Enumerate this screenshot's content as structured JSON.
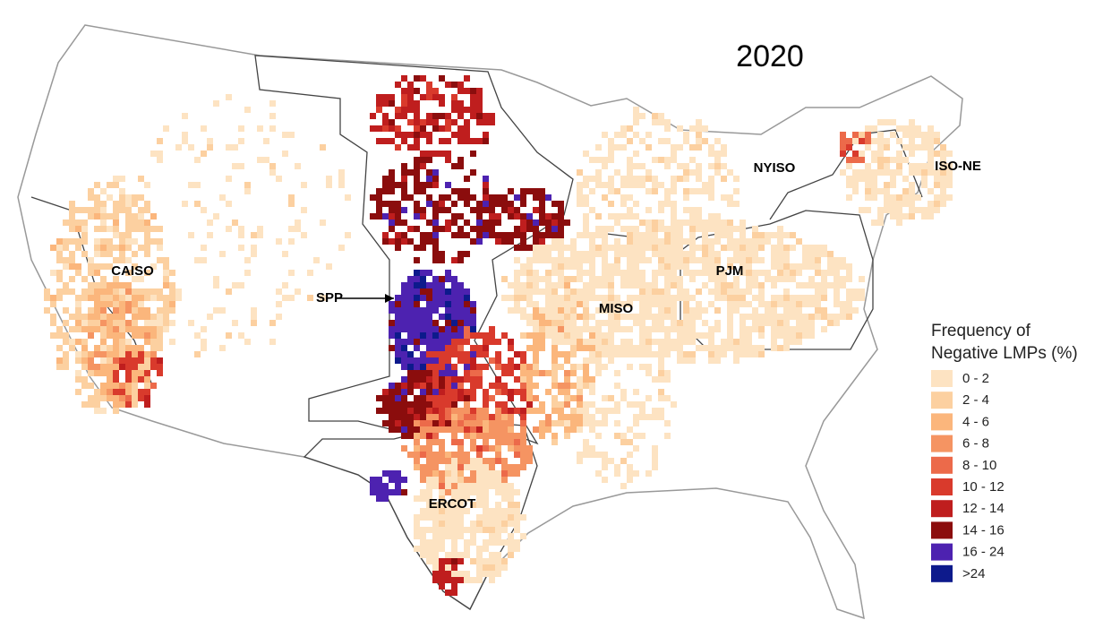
{
  "title": "2020",
  "regions": [
    "CAISO",
    "SPP",
    "MISO",
    "PJM",
    "NYISO",
    "ISO-NE",
    "ERCOT"
  ],
  "legend": {
    "title": [
      "Frequency of",
      "Negative LMPs (%)"
    ],
    "items": [
      {
        "label": "0 - 2",
        "color": "#fde3c2"
      },
      {
        "label": "2 - 4",
        "color": "#fcd0a0"
      },
      {
        "label": "4 - 6",
        "color": "#fbb67c"
      },
      {
        "label": "6 - 8",
        "color": "#f59462"
      },
      {
        "label": "8 - 10",
        "color": "#ec6a4a"
      },
      {
        "label": "10 - 12",
        "color": "#d93a2c"
      },
      {
        "label": "12 - 14",
        "color": "#bf1e1e"
      },
      {
        "label": "14 - 16",
        "color": "#8b0d0d"
      },
      {
        "label": "16 - 24",
        "color": "#4d22b0"
      },
      {
        "label": ">24",
        "color": "#0d1a8c"
      }
    ]
  }
}
